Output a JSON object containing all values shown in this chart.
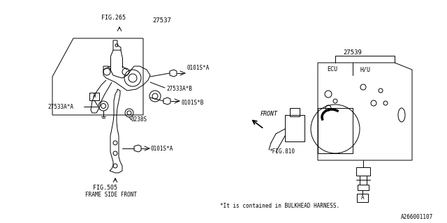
{
  "bg_color": "#ffffff",
  "line_color": "#000000",
  "fig_width": 6.4,
  "fig_height": 3.2,
  "dpi": 100,
  "labels": {
    "fig265": "FIG.265",
    "fig505": "FIG.505",
    "frame_side_front": "FRAME SIDE FRONT",
    "part27537": "27537",
    "part27533a_a": "27533A*A",
    "part27533a_b": "27533A*B",
    "part27539": "27539",
    "part0101s_a1": "0101S*A",
    "part0101s_a2": "0101S*A",
    "part0101s_b": "0101S*B",
    "part0238s": "0238S",
    "fig810": "*FIG.810",
    "front": "FRONT",
    "ecu": "ECU",
    "hu": "H/U",
    "note": "*It is contained in BULKHEAD HARNESS.",
    "part_a1": "A",
    "part_a2": "A",
    "doc_num": "A266001107"
  }
}
